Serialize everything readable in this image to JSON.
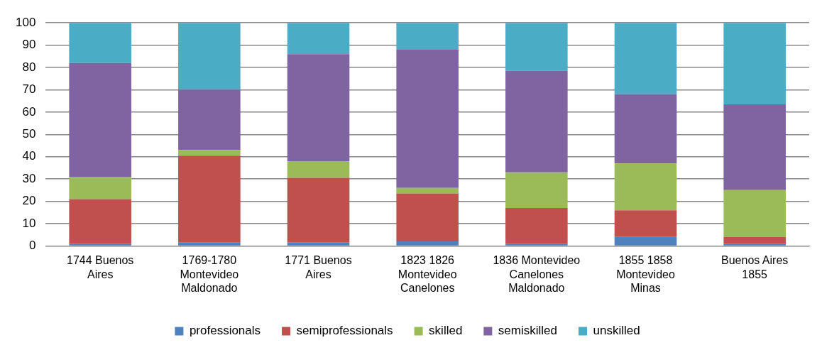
{
  "chart_data": {
    "type": "bar",
    "stacked": true,
    "categories": [
      "1744 Buenos\nAires",
      "1769-1780\nMontevideo\nMaldonado",
      "1771 Buenos\nAires",
      "1823 1826\nMontevideo\nCanelones",
      "1836 Montevideo\nCanelones\nMaldonado",
      "1855 1858\nMontevideo\nMinas",
      "Buenos Aires\n1855"
    ],
    "series": [
      {
        "name": "professionals",
        "color": "#4f81bd",
        "values": [
          1,
          1.5,
          1.5,
          2,
          1,
          4,
          1
        ]
      },
      {
        "name": "semiprofessionals",
        "color": "#c0504d",
        "values": [
          20,
          39,
          29,
          21.5,
          16,
          12,
          3
        ]
      },
      {
        "name": "skilled",
        "color": "#9bbb59",
        "values": [
          10,
          2.5,
          7.5,
          2.5,
          16,
          21,
          21
        ]
      },
      {
        "name": "semiskilled",
        "color": "#8064a2",
        "values": [
          51,
          27,
          48,
          62,
          45.5,
          31,
          38.5
        ]
      },
      {
        "name": "unskilled",
        "color": "#4bacc6",
        "values": [
          18,
          30,
          14,
          12,
          21.5,
          32,
          36.5
        ]
      }
    ],
    "ylim": [
      0,
      100
    ],
    "yticks": [
      0,
      10,
      20,
      30,
      40,
      50,
      60,
      70,
      80,
      90,
      100
    ],
    "grid": "y",
    "legend": "bottom"
  }
}
